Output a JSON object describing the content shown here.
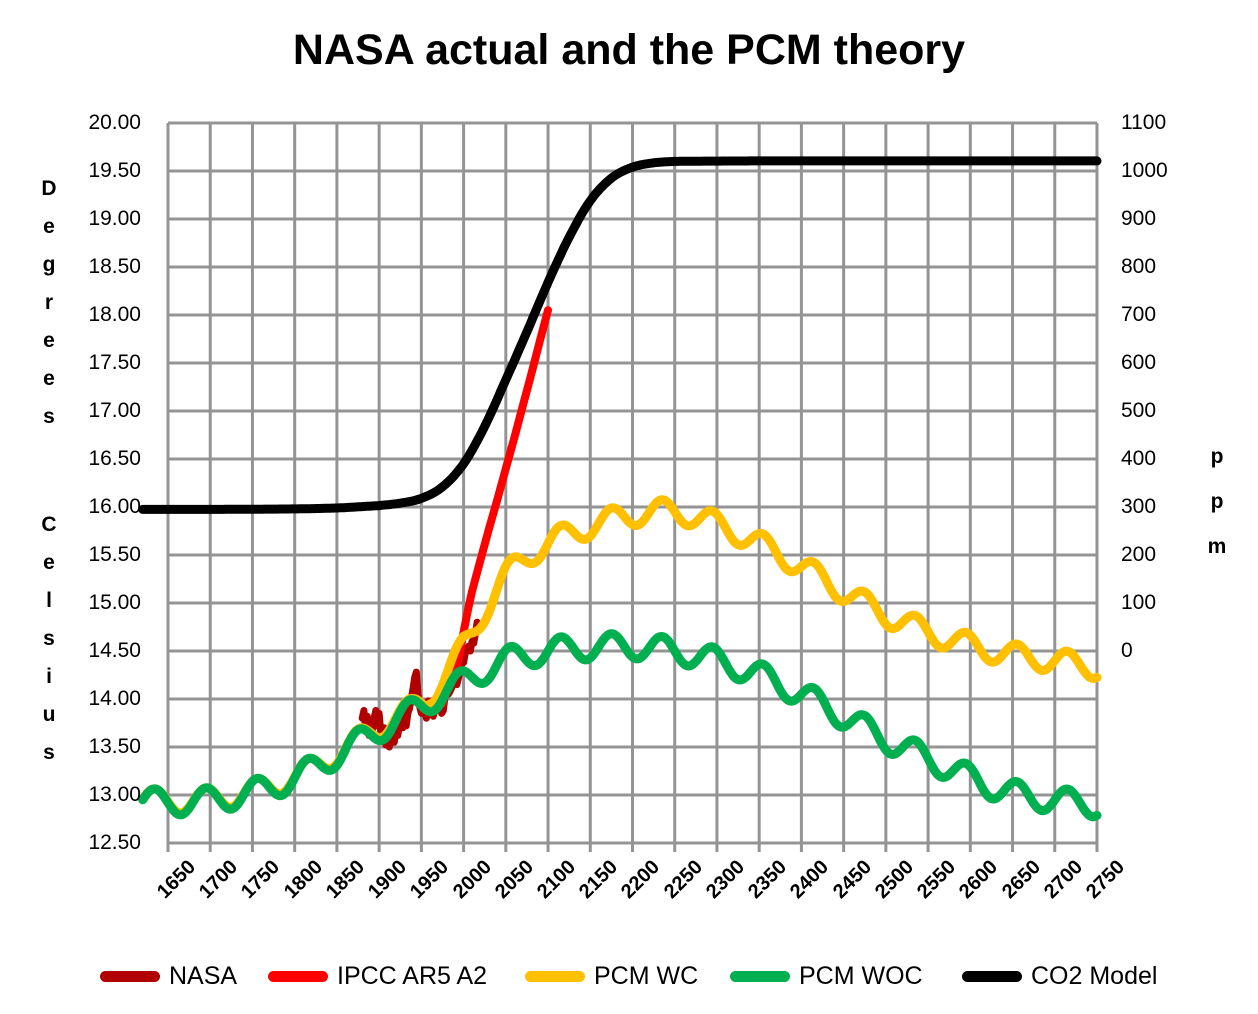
{
  "title": "NASA actual and the PCM theory",
  "colors": {
    "background": "#FFFFFF",
    "grid": "#949494",
    "text": "#000000",
    "nasa": "#B00000",
    "ipcc": "#FF0000",
    "pcm_wc": "#FFC000",
    "pcm_woc": "#00B050",
    "co2": "#000000"
  },
  "chart_data": {
    "type": "line",
    "title": "NASA actual and the PCM theory",
    "grid": "on",
    "legend_position": "bottom",
    "x_axis": {
      "range": [
        1620,
        2750
      ],
      "tick_step": 50,
      "tick_labels": [
        "1650",
        "1700",
        "1750",
        "1800",
        "1850",
        "1900",
        "1950",
        "2000",
        "2050",
        "2100",
        "2150",
        "2200",
        "2250",
        "2300",
        "2350",
        "2400",
        "2450",
        "2500",
        "2550",
        "2600",
        "2650",
        "2700",
        "2750"
      ]
    },
    "y_left": {
      "title": "Degrees Celsius",
      "title_words": [
        "Degrees",
        "Celsius"
      ],
      "range": [
        12.5,
        20.0
      ],
      "tick_labels": [
        "20.00",
        "19.50",
        "19.00",
        "18.50",
        "18.00",
        "17.50",
        "17.00",
        "16.50",
        "16.00",
        "15.50",
        "15.00",
        "14.50",
        "14.00",
        "13.50",
        "13.00",
        "12.50"
      ]
    },
    "y_right": {
      "title": "ppm",
      "range_shown": [
        0,
        1100
      ],
      "tick_labels": [
        "1100",
        "1000",
        "900",
        "800",
        "700",
        "600",
        "500",
        "400",
        "300",
        "200",
        "100",
        "0"
      ]
    },
    "legend": [
      {
        "label": "NASA",
        "color": "#B00000"
      },
      {
        "label": "IPCC AR5 A2",
        "color": "#FF0000"
      },
      {
        "label": "PCM WC",
        "color": "#FFC000"
      },
      {
        "label": "PCM WOC",
        "color": "#00B050"
      },
      {
        "label": "CO2 Model",
        "color": "#000000"
      }
    ],
    "series": [
      {
        "name": "NASA",
        "axis": "left",
        "color": "#B00000",
        "width": 7,
        "style": "points",
        "points": [
          [
            1880,
            13.8
          ],
          [
            1882,
            13.88
          ],
          [
            1884,
            13.7
          ],
          [
            1886,
            13.82
          ],
          [
            1888,
            13.62
          ],
          [
            1890,
            13.78
          ],
          [
            1892,
            13.68
          ],
          [
            1894,
            13.8
          ],
          [
            1896,
            13.88
          ],
          [
            1898,
            13.72
          ],
          [
            1900,
            13.85
          ],
          [
            1902,
            13.65
          ],
          [
            1904,
            13.58
          ],
          [
            1906,
            13.7
          ],
          [
            1908,
            13.52
          ],
          [
            1910,
            13.6
          ],
          [
            1912,
            13.5
          ],
          [
            1914,
            13.66
          ],
          [
            1916,
            13.58
          ],
          [
            1918,
            13.55
          ],
          [
            1920,
            13.68
          ],
          [
            1922,
            13.62
          ],
          [
            1924,
            13.72
          ],
          [
            1926,
            13.8
          ],
          [
            1928,
            13.7
          ],
          [
            1930,
            13.82
          ],
          [
            1932,
            13.72
          ],
          [
            1934,
            13.85
          ],
          [
            1936,
            13.9
          ],
          [
            1938,
            14.0
          ],
          [
            1940,
            14.1
          ],
          [
            1942,
            14.22
          ],
          [
            1944,
            14.28
          ],
          [
            1946,
            14.05
          ],
          [
            1948,
            13.92
          ],
          [
            1950,
            13.85
          ],
          [
            1952,
            13.95
          ],
          [
            1954,
            13.88
          ],
          [
            1956,
            13.8
          ],
          [
            1958,
            13.98
          ],
          [
            1960,
            13.95
          ],
          [
            1962,
            13.98
          ],
          [
            1964,
            13.82
          ],
          [
            1966,
            13.88
          ],
          [
            1968,
            13.9
          ],
          [
            1970,
            14.0
          ],
          [
            1972,
            13.95
          ],
          [
            1974,
            13.85
          ],
          [
            1976,
            13.88
          ],
          [
            1978,
            14.02
          ],
          [
            1980,
            14.12
          ],
          [
            1982,
            14.05
          ],
          [
            1984,
            14.08
          ],
          [
            1986,
            14.12
          ],
          [
            1988,
            14.22
          ],
          [
            1990,
            14.28
          ],
          [
            1992,
            14.15
          ],
          [
            1994,
            14.22
          ],
          [
            1996,
            14.3
          ],
          [
            1998,
            14.42
          ],
          [
            2000,
            14.38
          ],
          [
            2002,
            14.48
          ],
          [
            2004,
            14.5
          ],
          [
            2006,
            14.55
          ],
          [
            2008,
            14.5
          ],
          [
            2010,
            14.6
          ],
          [
            2012,
            14.58
          ],
          [
            2014,
            14.68
          ],
          [
            2016,
            14.8
          ],
          [
            2018,
            14.72
          ],
          [
            2020,
            14.78
          ]
        ]
      },
      {
        "name": "IPCC AR5 A2",
        "axis": "left",
        "color": "#FF0000",
        "width": 8,
        "style": "points",
        "points": [
          [
            1950,
            13.92
          ],
          [
            1955,
            13.88
          ],
          [
            1960,
            13.96
          ],
          [
            1965,
            13.9
          ],
          [
            1970,
            13.98
          ],
          [
            1975,
            13.95
          ],
          [
            1980,
            14.1
          ],
          [
            1985,
            14.18
          ],
          [
            1990,
            14.3
          ],
          [
            1995,
            14.45
          ],
          [
            2000,
            14.7
          ],
          [
            2005,
            14.92
          ],
          [
            2010,
            15.12
          ],
          [
            2020,
            15.45
          ],
          [
            2030,
            15.77
          ],
          [
            2040,
            16.08
          ],
          [
            2050,
            16.4
          ],
          [
            2060,
            16.72
          ],
          [
            2070,
            17.05
          ],
          [
            2080,
            17.38
          ],
          [
            2090,
            17.72
          ],
          [
            2100,
            18.05
          ]
        ]
      },
      {
        "name": "PCM WC",
        "axis": "left",
        "color": "#FFC000",
        "width": 9,
        "style": "trend+wiggle",
        "wiggle": {
          "period_years": 60,
          "amplitude": 0.12,
          "trough_year": 1665
        },
        "trend": [
          [
            1620,
            12.96
          ],
          [
            1650,
            12.93
          ],
          [
            1700,
            12.96
          ],
          [
            1750,
            13.04
          ],
          [
            1800,
            13.19
          ],
          [
            1850,
            13.43
          ],
          [
            1900,
            13.7
          ],
          [
            1940,
            13.9
          ],
          [
            1960,
            14.05
          ],
          [
            2000,
            14.55
          ],
          [
            2050,
            15.28
          ],
          [
            2100,
            15.62
          ],
          [
            2150,
            15.8
          ],
          [
            2200,
            15.92
          ],
          [
            2250,
            15.95
          ],
          [
            2300,
            15.82
          ],
          [
            2350,
            15.62
          ],
          [
            2400,
            15.38
          ],
          [
            2450,
            15.12
          ],
          [
            2500,
            14.88
          ],
          [
            2550,
            14.7
          ],
          [
            2600,
            14.56
          ],
          [
            2650,
            14.46
          ],
          [
            2700,
            14.4
          ],
          [
            2750,
            14.33
          ]
        ]
      },
      {
        "name": "PCM WOC",
        "axis": "left",
        "color": "#00B050",
        "width": 9,
        "style": "trend+wiggle",
        "wiggle": {
          "period_years": 60,
          "amplitude": 0.13,
          "trough_year": 1665
        },
        "trend": [
          [
            1620,
            12.95
          ],
          [
            1650,
            12.92
          ],
          [
            1700,
            12.95
          ],
          [
            1750,
            13.03
          ],
          [
            1800,
            13.18
          ],
          [
            1850,
            13.42
          ],
          [
            1900,
            13.68
          ],
          [
            1950,
            13.93
          ],
          [
            2000,
            14.18
          ],
          [
            2050,
            14.4
          ],
          [
            2100,
            14.5
          ],
          [
            2150,
            14.54
          ],
          [
            2200,
            14.55
          ],
          [
            2250,
            14.5
          ],
          [
            2300,
            14.4
          ],
          [
            2350,
            14.25
          ],
          [
            2400,
            14.05
          ],
          [
            2450,
            13.82
          ],
          [
            2500,
            13.58
          ],
          [
            2550,
            13.38
          ],
          [
            2600,
            13.18
          ],
          [
            2650,
            13.02
          ],
          [
            2700,
            12.95
          ],
          [
            2750,
            12.9
          ]
        ]
      },
      {
        "name": "CO2 Model",
        "axis": "right",
        "color": "#000000",
        "width": 9,
        "style": "smooth",
        "points": [
          [
            1620,
            295
          ],
          [
            1700,
            295
          ],
          [
            1800,
            296
          ],
          [
            1850,
            298
          ],
          [
            1900,
            303
          ],
          [
            1925,
            308
          ],
          [
            1950,
            318
          ],
          [
            1975,
            342
          ],
          [
            2000,
            390
          ],
          [
            2025,
            468
          ],
          [
            2050,
            565
          ],
          [
            2075,
            665
          ],
          [
            2100,
            768
          ],
          [
            2125,
            862
          ],
          [
            2150,
            938
          ],
          [
            2175,
            985
          ],
          [
            2200,
            1008
          ],
          [
            2225,
            1017
          ],
          [
            2250,
            1020
          ],
          [
            2350,
            1021
          ],
          [
            2500,
            1021
          ],
          [
            2750,
            1021
          ]
        ]
      }
    ]
  }
}
